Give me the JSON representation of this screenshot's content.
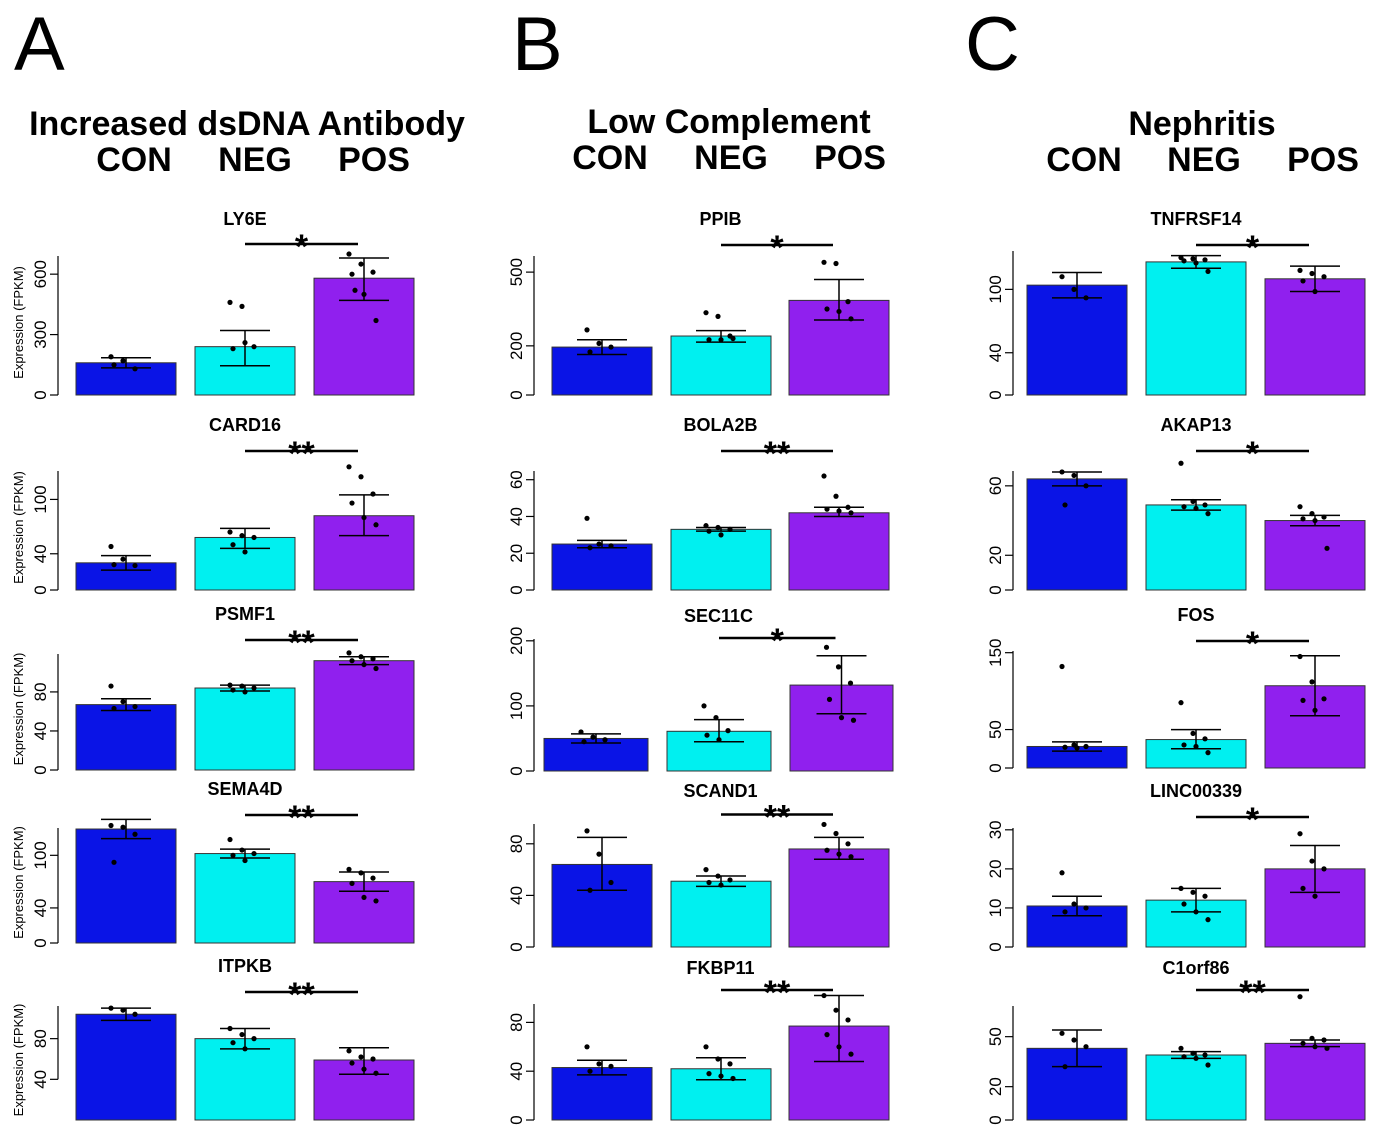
{
  "columns": [
    {
      "letter": "A",
      "title": "Increased dsDNA Antibody",
      "groups": [
        "CON",
        "NEG",
        "POS"
      ]
    },
    {
      "letter": "B",
      "title": "Low Complement",
      "groups": [
        "CON",
        "NEG",
        "POS"
      ]
    },
    {
      "letter": "C",
      "title": "Nephritis",
      "groups": [
        "CON",
        "NEG",
        "POS"
      ]
    }
  ],
  "colors": {
    "CON": "#0a14e6",
    "NEG": "#00f0f0",
    "POS": "#9020ee"
  },
  "ylabel": "Expression (FPKM)",
  "chart_data": [
    {
      "type": "bar",
      "panel": "A",
      "title": "LY6E",
      "categories": [
        "CON",
        "NEG",
        "POS"
      ],
      "values": [
        160,
        240,
        580
      ],
      "err": [
        [
          135,
          185
        ],
        [
          145,
          320
        ],
        [
          470,
          680
        ]
      ],
      "points": [
        [
          190,
          170,
          130,
          150
        ],
        [
          460,
          440,
          240,
          230,
          260
        ],
        [
          700,
          650,
          610,
          600,
          500,
          370,
          520
        ]
      ],
      "sig": "*",
      "ticks": [
        0,
        300,
        600
      ],
      "ylim": [
        0,
        720
      ]
    },
    {
      "type": "bar",
      "panel": "A",
      "title": "CARD16",
      "categories": [
        "CON",
        "NEG",
        "POS"
      ],
      "values": [
        30,
        58,
        82
      ],
      "err": [
        [
          22,
          38
        ],
        [
          46,
          68
        ],
        [
          60,
          105
        ]
      ],
      "points": [
        [
          48,
          34,
          27,
          28
        ],
        [
          64,
          60,
          58,
          50,
          42
        ],
        [
          136,
          125,
          106,
          96,
          80,
          72
        ]
      ],
      "sig": "**",
      "ticks": [
        0,
        40,
        100
      ],
      "ylim": [
        0,
        138
      ]
    },
    {
      "type": "bar",
      "panel": "A",
      "title": "PSMF1",
      "categories": [
        "CON",
        "NEG",
        "POS"
      ],
      "values": [
        67,
        84,
        112
      ],
      "err": [
        [
          61,
          73
        ],
        [
          81,
          87
        ],
        [
          108,
          116
        ]
      ],
      "points": [
        [
          86,
          70,
          65,
          63
        ],
        [
          87,
          86,
          84,
          82,
          80
        ],
        [
          120,
          116,
          114,
          112,
          108,
          104
        ]
      ],
      "sig": "**",
      "ticks": [
        0,
        40,
        80
      ],
      "ylim": [
        0,
        125
      ]
    },
    {
      "type": "bar",
      "panel": "A",
      "title": "SEMA4D",
      "categories": [
        "CON",
        "NEG",
        "POS"
      ],
      "values": [
        130,
        102,
        70
      ],
      "err": [
        [
          119,
          141
        ],
        [
          97,
          107
        ],
        [
          59,
          81
        ]
      ],
      "points": [
        [
          134,
          132,
          124,
          92
        ],
        [
          118,
          106,
          102,
          100,
          94
        ],
        [
          84,
          80,
          74,
          68,
          52,
          48
        ]
      ],
      "sig": "**",
      "ticks": [
        0,
        40,
        100
      ],
      "ylim": [
        0,
        138
      ]
    },
    {
      "type": "bar",
      "panel": "A",
      "title": "ITPKB",
      "categories": [
        "CON",
        "NEG",
        "POS"
      ],
      "values": [
        104,
        80,
        59
      ],
      "err": [
        [
          98,
          110
        ],
        [
          70,
          90
        ],
        [
          45,
          71
        ]
      ],
      "points": [
        [
          110,
          108,
          104
        ],
        [
          90,
          84,
          80,
          76,
          70
        ],
        [
          68,
          62,
          60,
          56,
          50,
          46
        ]
      ],
      "sig": "**",
      "ticks": [
        40,
        80
      ],
      "ylim": [
        0,
        118
      ]
    },
    {
      "type": "bar",
      "panel": "B",
      "title": "PPIB",
      "categories": [
        "CON",
        "NEG",
        "POS"
      ],
      "values": [
        195,
        240,
        385
      ],
      "err": [
        [
          165,
          225
        ],
        [
          215,
          262
        ],
        [
          305,
          470
        ]
      ],
      "points": [
        [
          265,
          210,
          195,
          175
        ],
        [
          335,
          320,
          240,
          225,
          225,
          230
        ],
        [
          540,
          535,
          380,
          350,
          340,
          310
        ]
      ],
      "sig": "*",
      "ticks": [
        0,
        200,
        500
      ],
      "ylim": [
        0,
        590
      ]
    },
    {
      "type": "bar",
      "panel": "B",
      "title": "BOLA2B",
      "categories": [
        "CON",
        "NEG",
        "POS"
      ],
      "values": [
        25,
        33,
        42
      ],
      "err": [
        [
          23,
          27
        ],
        [
          32,
          34
        ],
        [
          40,
          45
        ]
      ],
      "points": [
        [
          39,
          25,
          24,
          23
        ],
        [
          35,
          34,
          33,
          32,
          30
        ],
        [
          62,
          51,
          45,
          44,
          43,
          42
        ]
      ],
      "sig": "**",
      "ticks": [
        0,
        20,
        40,
        60
      ],
      "ylim": [
        0,
        68
      ]
    },
    {
      "type": "bar",
      "panel": "B",
      "title": "SEC11C",
      "categories": [
        "CON",
        "NEG",
        "POS"
      ],
      "values": [
        50,
        61,
        132
      ],
      "err": [
        [
          43,
          57
        ],
        [
          45,
          79
        ],
        [
          88,
          177
        ]
      ],
      "points": [
        [
          60,
          52,
          48,
          45
        ],
        [
          100,
          82,
          62,
          55,
          48
        ],
        [
          190,
          160,
          135,
          110,
          82,
          78
        ]
      ],
      "sig": "*",
      "ticks": [
        0,
        100,
        200
      ],
      "ylim": [
        0,
        212
      ]
    },
    {
      "type": "bar",
      "panel": "B",
      "title": "SCAND1",
      "categories": [
        "CON",
        "NEG",
        "POS"
      ],
      "values": [
        64,
        51,
        76
      ],
      "err": [
        [
          44,
          85
        ],
        [
          47,
          55
        ],
        [
          68,
          85
        ]
      ],
      "points": [
        [
          90,
          72,
          50,
          44
        ],
        [
          60,
          55,
          52,
          50,
          48
        ],
        [
          95,
          88,
          80,
          75,
          72,
          70
        ]
      ],
      "sig": "**",
      "ticks": [
        0,
        40,
        80
      ],
      "ylim": [
        0,
        100
      ]
    },
    {
      "type": "bar",
      "panel": "B",
      "title": "FKBP11",
      "categories": [
        "CON",
        "NEG",
        "POS"
      ],
      "values": [
        43,
        42,
        77
      ],
      "err": [
        [
          37,
          49
        ],
        [
          33,
          51
        ],
        [
          48,
          102
        ]
      ],
      "points": [
        [
          60,
          46,
          44,
          40
        ],
        [
          60,
          50,
          46,
          38,
          36,
          34
        ],
        [
          102,
          90,
          82,
          70,
          60,
          54
        ]
      ],
      "sig": "**",
      "ticks": [
        0,
        40,
        80
      ],
      "ylim": [
        0,
        100
      ]
    },
    {
      "type": "bar",
      "panel": "C",
      "title": "TNFRSF14",
      "categories": [
        "CON",
        "NEG",
        "POS"
      ],
      "values": [
        104,
        126,
        110
      ],
      "err": [
        [
          92,
          116
        ],
        [
          120,
          132
        ],
        [
          98,
          122
        ]
      ],
      "points": [
        [
          112,
          100,
          92
        ],
        [
          130,
          129,
          128,
          127,
          125,
          117
        ],
        [
          118,
          115,
          112,
          108,
          98
        ]
      ],
      "sig": "*",
      "ticks": [
        0,
        40,
        100
      ],
      "ylim": [
        0,
        142
      ]
    },
    {
      "type": "bar",
      "panel": "C",
      "title": "AKAP13",
      "categories": [
        "CON",
        "NEG",
        "POS"
      ],
      "values": [
        64,
        49,
        40
      ],
      "err": [
        [
          60,
          68
        ],
        [
          46,
          52
        ],
        [
          37,
          43
        ]
      ],
      "points": [
        [
          68,
          66,
          60,
          49
        ],
        [
          73,
          51,
          49,
          48,
          47,
          44
        ],
        [
          48,
          44,
          42,
          41,
          40,
          24
        ]
      ],
      "sig": "*",
      "ticks": [
        0,
        20,
        60
      ],
      "ylim": [
        0,
        72
      ]
    },
    {
      "type": "bar",
      "panel": "C",
      "title": "FOS",
      "categories": [
        "CON",
        "NEG",
        "POS"
      ],
      "values": [
        28,
        37,
        107
      ],
      "err": [
        [
          22,
          34
        ],
        [
          25,
          50
        ],
        [
          68,
          146
        ]
      ],
      "points": [
        [
          132,
          30,
          28,
          27,
          26
        ],
        [
          85,
          45,
          38,
          30,
          28,
          20
        ],
        [
          145,
          112,
          90,
          88,
          75
        ]
      ],
      "sig": "*",
      "ticks": [
        0,
        50,
        150
      ],
      "ylim": [
        0,
        160
      ]
    },
    {
      "type": "bar",
      "panel": "C",
      "title": "LINC00339",
      "categories": [
        "CON",
        "NEG",
        "POS"
      ],
      "values": [
        10.5,
        12,
        20
      ],
      "err": [
        [
          8,
          13
        ],
        [
          9,
          15
        ],
        [
          14,
          26
        ]
      ],
      "points": [
        [
          19,
          11,
          10,
          9
        ],
        [
          15,
          14,
          13,
          11,
          9,
          7
        ],
        [
          29,
          22,
          20,
          15,
          13
        ]
      ],
      "sig": "*",
      "ticks": [
        0,
        10,
        20,
        30
      ],
      "ylim": [
        0,
        32
      ]
    },
    {
      "type": "bar",
      "panel": "C",
      "title": "C1orf86",
      "categories": [
        "CON",
        "NEG",
        "POS"
      ],
      "values": [
        43,
        39,
        46
      ],
      "err": [
        [
          32,
          54
        ],
        [
          37,
          41
        ],
        [
          44,
          48
        ]
      ],
      "points": [
        [
          52,
          48,
          44,
          32
        ],
        [
          43,
          40,
          39,
          38,
          37,
          33
        ],
        [
          74,
          49,
          48,
          46,
          44,
          43
        ]
      ],
      "sig": "**",
      "ticks": [
        0,
        20,
        50
      ],
      "ylim": [
        0,
        72
      ]
    }
  ]
}
